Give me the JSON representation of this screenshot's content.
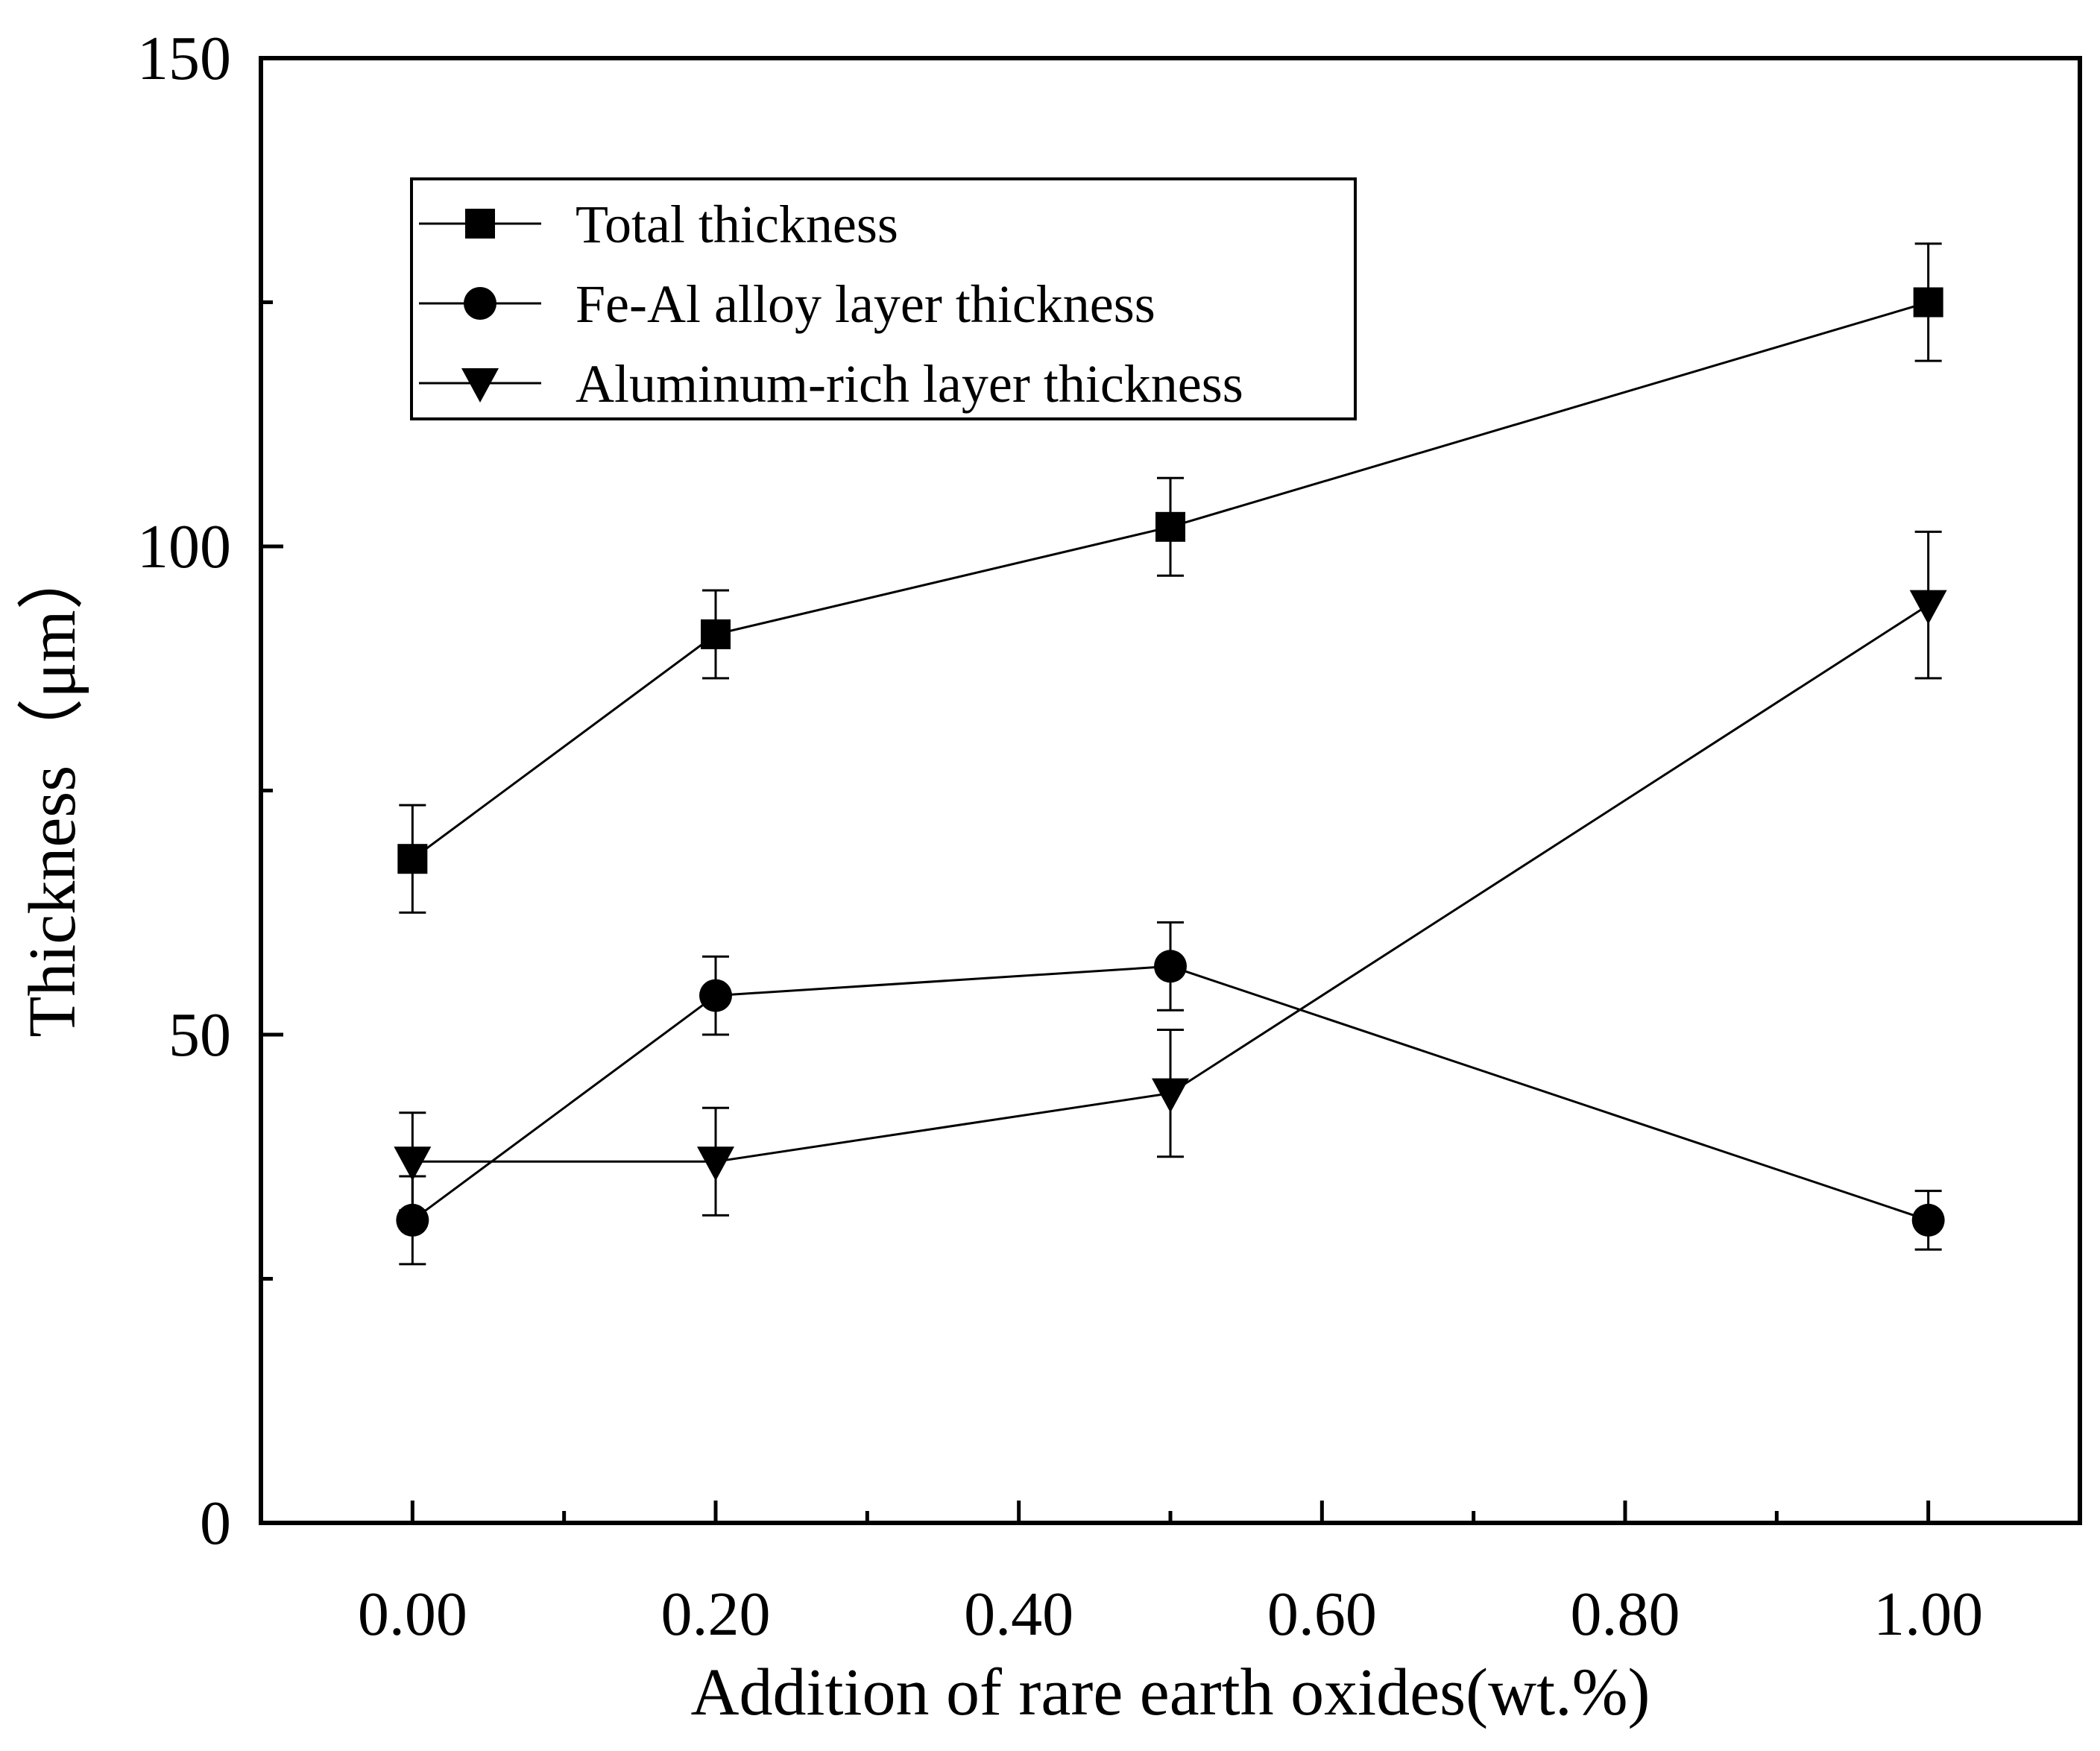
{
  "chart_data": {
    "type": "line",
    "title": "",
    "xlabel": "Addition of rare earth oxides(wt.%)",
    "ylabel": "Thickness（μm）",
    "xlim": [
      -0.1,
      1.1
    ],
    "ylim": [
      0,
      150
    ],
    "x_major_ticks": [
      0.0,
      0.2,
      0.4,
      0.6,
      0.8,
      1.0
    ],
    "x_minor_ticks": [
      0.1,
      0.3,
      0.5,
      0.7,
      0.9
    ],
    "x_tick_labels": [
      "0.00",
      "0.20",
      "0.40",
      "0.60",
      "0.80",
      "1.00"
    ],
    "y_major_ticks": [
      0,
      50,
      100,
      150
    ],
    "y_minor_ticks": [
      25,
      75,
      125
    ],
    "y_tick_labels": [
      "0",
      "50",
      "100",
      "150"
    ],
    "grid": false,
    "legend_position": "top-left",
    "x": [
      0.0,
      0.2,
      0.5,
      1.0
    ],
    "series": [
      {
        "name": "Total thickness",
        "marker": "square",
        "values": [
          68,
          91,
          102,
          125
        ],
        "errors": [
          5.5,
          4.5,
          5.0,
          6.0
        ]
      },
      {
        "name": "Fe-Al alloy layer thickness",
        "marker": "circle",
        "values": [
          31,
          54,
          57,
          31
        ],
        "errors": [
          4.5,
          4.0,
          4.5,
          3.0
        ]
      },
      {
        "name": "Aluminum-rich layer thickness",
        "marker": "triangle-down",
        "values": [
          37,
          37,
          44,
          94
        ],
        "errors": [
          5.0,
          5.5,
          6.5,
          7.5
        ]
      }
    ]
  }
}
